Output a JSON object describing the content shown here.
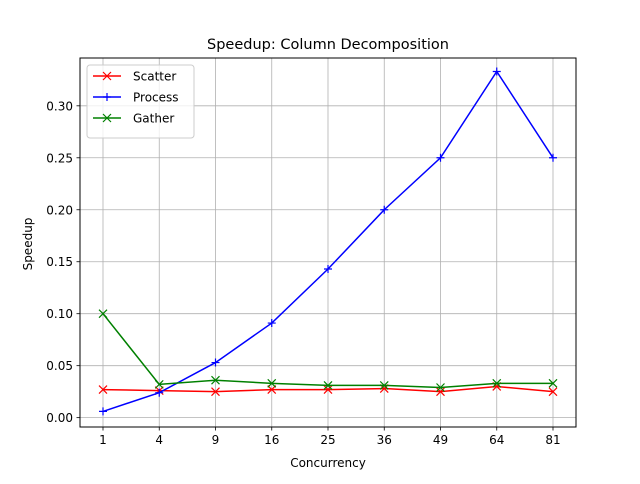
{
  "chart_data": {
    "type": "line",
    "title": "Speedup: Column Decomposition",
    "xlabel": "Concurrency",
    "ylabel": "Speedup",
    "categories": [
      "1",
      "4",
      "9",
      "16",
      "25",
      "36",
      "49",
      "64",
      "81"
    ],
    "ylim": [
      -0.009,
      0.346
    ],
    "yticks": [
      0.0,
      0.05,
      0.1,
      0.15,
      0.2,
      0.25,
      0.3
    ],
    "ytick_labels": [
      "0.00",
      "0.05",
      "0.10",
      "0.15",
      "0.20",
      "0.25",
      "0.30"
    ],
    "grid": true,
    "legend_position": "top-left",
    "series": [
      {
        "name": "Scatter",
        "color": "#ff0000",
        "marker": "x",
        "values": [
          0.027,
          0.026,
          0.025,
          0.027,
          0.027,
          0.028,
          0.025,
          0.03,
          0.025
        ]
      },
      {
        "name": "Process",
        "color": "#0000ff",
        "marker": "+",
        "values": [
          0.006,
          0.024,
          0.053,
          0.091,
          0.143,
          0.2,
          0.25,
          0.333,
          0.25
        ]
      },
      {
        "name": "Gather",
        "color": "#008000",
        "marker": "x",
        "values": [
          0.1,
          0.032,
          0.036,
          0.033,
          0.031,
          0.031,
          0.029,
          0.033,
          0.033
        ]
      }
    ]
  }
}
